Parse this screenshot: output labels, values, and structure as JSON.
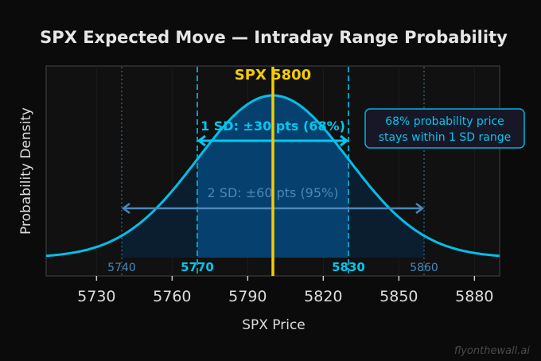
{
  "chart_data": {
    "type": "area",
    "title": "SPX Expected Move — Intraday Range Probability",
    "xlabel": "SPX Price",
    "ylabel": "Probability Density",
    "xlim": [
      5710,
      5890
    ],
    "xticks": [
      5730,
      5760,
      5790,
      5820,
      5850,
      5880
    ],
    "grid": true,
    "distribution": {
      "kind": "normal",
      "mean": 5800,
      "sd": 30
    },
    "center": {
      "value": 5800,
      "label": "SPX 5800",
      "color": "#f5cc00"
    },
    "one_sd": {
      "low": 5770,
      "high": 5830,
      "low_label": "5770",
      "high_label": "5830",
      "label": "1 SD:  ±30 pts  (68%)",
      "color": "#00c8ef"
    },
    "two_sd": {
      "low": 5740,
      "high": 5860,
      "low_label": "5740",
      "high_label": "5860",
      "label": "2 SD:  ±60 pts  (95%)",
      "color": "#4a88b8"
    },
    "annotation": {
      "line1": "68% probability price",
      "line2": "stays within 1 SD range"
    }
  },
  "watermark": "flyonthewall.ai"
}
